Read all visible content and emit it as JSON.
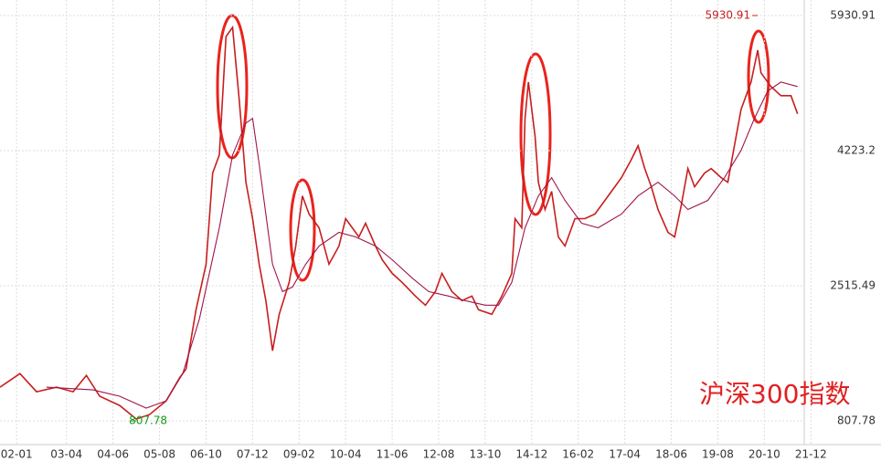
{
  "chart_data": {
    "type": "line",
    "title": "沪深300指数",
    "xlim": [
      -5,
      237
    ],
    "ylim": [
      508,
      6127
    ],
    "xticks": [
      {
        "value": 0,
        "label": "02-01"
      },
      {
        "value": 15,
        "label": "03-04"
      },
      {
        "value": 29,
        "label": "04-06"
      },
      {
        "value": 43,
        "label": "05-08"
      },
      {
        "value": 57,
        "label": "06-10"
      },
      {
        "value": 71,
        "label": "07-12"
      },
      {
        "value": 85,
        "label": "09-02"
      },
      {
        "value": 99,
        "label": "10-04"
      },
      {
        "value": 113,
        "label": "11-06"
      },
      {
        "value": 127,
        "label": "12-08"
      },
      {
        "value": 141,
        "label": "13-10"
      },
      {
        "value": 155,
        "label": "14-12"
      },
      {
        "value": 169,
        "label": "16-02"
      },
      {
        "value": 183,
        "label": "17-04"
      },
      {
        "value": 197,
        "label": "18-06"
      },
      {
        "value": 211,
        "label": "19-08"
      },
      {
        "value": 225,
        "label": "20-10"
      },
      {
        "value": 239,
        "label": "21-12"
      }
    ],
    "yticks": [
      807.78,
      2515.49,
      4223.2,
      5930.91
    ],
    "grid": true,
    "series": [
      {
        "color": "#c81e1e",
        "x": [
          -5,
          1,
          6,
          12,
          17,
          21,
          25,
          31,
          36,
          40,
          45,
          49,
          51,
          54,
          57,
          59,
          61,
          63,
          65,
          67,
          69,
          71,
          73,
          75,
          77,
          79,
          82,
          84,
          86,
          88,
          91,
          94,
          97,
          99,
          103,
          105,
          108,
          110,
          113,
          116,
          120,
          123,
          126,
          128,
          131,
          134,
          137,
          139,
          143,
          146,
          149,
          150,
          152,
          153,
          154,
          156,
          157,
          159,
          161,
          163,
          165,
          168,
          171,
          174,
          176,
          179,
          182,
          185,
          187,
          189,
          191,
          193,
          196,
          198,
          200,
          202,
          204,
          207,
          209,
          212,
          214,
          216,
          218,
          221,
          223,
          224,
          227,
          230,
          233,
          235
        ],
        "values": [
          1234,
          1406,
          1176,
          1234,
          1176,
          1383,
          1119,
          1003,
          831,
          888,
          1061,
          1349,
          1464,
          2212,
          2788,
          3939,
          4169,
          5666,
          5781,
          4860,
          3824,
          3364,
          2788,
          2327,
          1694,
          2154,
          2558,
          3018,
          3651,
          3421,
          3248,
          2788,
          3018,
          3364,
          3133,
          3306,
          3018,
          2845,
          2673,
          2558,
          2385,
          2270,
          2442,
          2673,
          2442,
          2327,
          2385,
          2212,
          2154,
          2385,
          2673,
          3364,
          3248,
          4630,
          5090,
          4400,
          3824,
          3479,
          3709,
          3133,
          3018,
          3364,
          3364,
          3421,
          3536,
          3709,
          3882,
          4112,
          4285,
          3997,
          3766,
          3479,
          3191,
          3133,
          3536,
          3997,
          3766,
          3939,
          3997,
          3882,
          3824,
          4285,
          4745,
          5090,
          5494,
          5206,
          5033,
          4918,
          4918,
          4688
        ]
      },
      {
        "color": "#a0144a",
        "x": [
          9,
          23,
          31,
          39,
          45,
          50,
          55,
          61,
          65,
          69,
          71,
          73,
          77,
          80,
          83,
          87,
          91,
          97,
          102,
          108,
          113,
          119,
          124,
          130,
          135,
          141,
          145,
          149,
          153,
          157,
          161,
          165,
          170,
          175,
          182,
          187,
          193,
          198,
          202,
          208,
          213,
          218,
          222,
          226,
          230,
          235
        ],
        "values": [
          1234,
          1199,
          1119,
          969,
          1061,
          1406,
          2097,
          3248,
          4169,
          4572,
          4630,
          4054,
          2788,
          2442,
          2500,
          2788,
          3018,
          3191,
          3133,
          3018,
          2845,
          2615,
          2442,
          2385,
          2327,
          2270,
          2270,
          2558,
          3248,
          3651,
          3882,
          3594,
          3306,
          3248,
          3421,
          3651,
          3824,
          3651,
          3479,
          3594,
          3882,
          4227,
          4630,
          4975,
          5090,
          5033
        ]
      }
    ],
    "extremes": [
      {
        "x": 223,
        "value": 5930.91,
        "color": "#c81e1e"
      },
      {
        "x": 36,
        "value": 807.78,
        "color": "#1a9a1a"
      }
    ]
  }
}
